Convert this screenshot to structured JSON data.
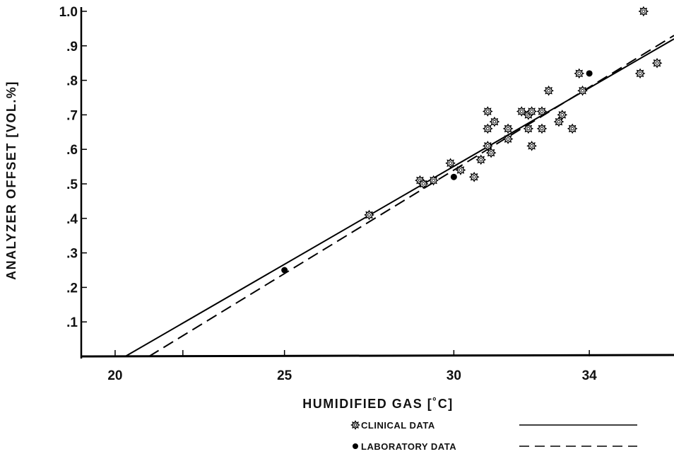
{
  "chart_data": {
    "type": "scatter",
    "xlabel": "HUMIDIFIED GAS [˚C]",
    "ylabel": "ANALYZER OFFSET [VOL.%]",
    "xlim": [
      19,
      36.5
    ],
    "ylim": [
      0,
      1.0
    ],
    "x_ticks": [
      20,
      22,
      25,
      30,
      34
    ],
    "x_tick_labels": [
      "20",
      "",
      "25",
      "30",
      "34"
    ],
    "y_ticks": [
      0.1,
      0.2,
      0.3,
      0.4,
      0.5,
      0.6,
      0.7,
      0.8,
      0.9,
      1.0
    ],
    "y_tick_labels": [
      ".1",
      ".2",
      ".3",
      ".4",
      ".5",
      ".6",
      ".7",
      ".8",
      ".9",
      "1.0"
    ],
    "grid": false,
    "legend_position": "bottom-right",
    "series": [
      {
        "name": "CLINICAL DATA",
        "marker": "star",
        "line_style": "solid",
        "fit_line": [
          [
            20.3,
            0.0
          ],
          [
            36.5,
            0.92
          ]
        ],
        "points": [
          [
            27.5,
            0.41
          ],
          [
            29.0,
            0.51
          ],
          [
            29.1,
            0.5
          ],
          [
            29.4,
            0.51
          ],
          [
            29.9,
            0.56
          ],
          [
            30.2,
            0.54
          ],
          [
            30.6,
            0.52
          ],
          [
            30.8,
            0.57
          ],
          [
            31.0,
            0.71
          ],
          [
            31.0,
            0.66
          ],
          [
            31.0,
            0.61
          ],
          [
            31.1,
            0.59
          ],
          [
            31.2,
            0.68
          ],
          [
            31.6,
            0.66
          ],
          [
            31.6,
            0.63
          ],
          [
            32.0,
            0.71
          ],
          [
            32.2,
            0.7
          ],
          [
            32.2,
            0.66
          ],
          [
            32.3,
            0.71
          ],
          [
            32.3,
            0.61
          ],
          [
            32.6,
            0.71
          ],
          [
            32.6,
            0.66
          ],
          [
            32.8,
            0.77
          ],
          [
            33.1,
            0.68
          ],
          [
            33.2,
            0.7
          ],
          [
            33.5,
            0.66
          ],
          [
            33.7,
            0.82
          ],
          [
            33.8,
            0.77
          ],
          [
            35.5,
            0.82
          ],
          [
            35.6,
            1.0
          ],
          [
            36.0,
            0.85
          ]
        ]
      },
      {
        "name": "LABORATORY DATA",
        "marker": "filled-circle",
        "line_style": "dashed",
        "fit_line": [
          [
            21.0,
            0.0
          ],
          [
            36.5,
            0.93
          ]
        ],
        "points": [
          [
            25.0,
            0.25
          ],
          [
            30.0,
            0.52
          ],
          [
            34.0,
            0.82
          ]
        ]
      }
    ]
  }
}
